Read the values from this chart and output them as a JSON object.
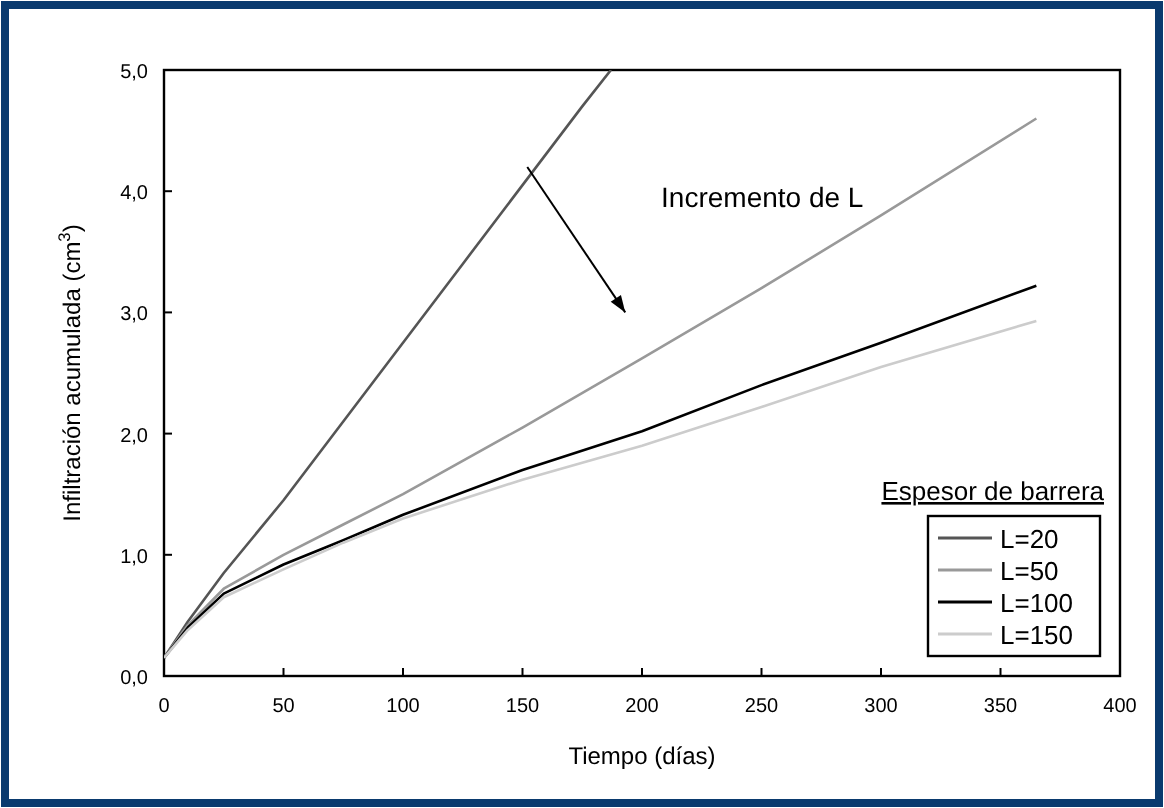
{
  "chart_data": {
    "type": "line",
    "xlabel": "Tiempo (días)",
    "ylabel": "Infiltración acumulada (cm$^{3}$)",
    "legend_title": "Espesor de barrera",
    "legend": "bottom right",
    "grid": false,
    "marker": "none",
    "line_style": "solid",
    "annotations": [
      "Incremento de L"
    ],
    "xlim": [
      0,
      400
    ],
    "xticks": [
      0,
      50,
      100,
      150,
      200,
      250,
      300,
      350,
      400
    ],
    "ylim": [
      0,
      5
    ],
    "yticks": [
      {
        "value": 0,
        "label": "0,0"
      },
      {
        "value": 1,
        "label": "1,0"
      },
      {
        "value": 2,
        "label": "2,0"
      },
      {
        "value": 3,
        "label": "3,0"
      },
      {
        "value": 4,
        "label": "4,0"
      },
      {
        "value": 5,
        "label": "5,0"
      }
    ],
    "series": [
      {
        "name": "L=20",
        "color": "#555555",
        "x": [
          0,
          10,
          25,
          50,
          75,
          100,
          125,
          150,
          175,
          187
        ],
        "values": [
          0.15,
          0.45,
          0.85,
          1.45,
          2.1,
          2.75,
          3.4,
          4.05,
          4.7,
          5.0
        ]
      },
      {
        "name": "L=50",
        "color": "#999999",
        "x": [
          0,
          10,
          25,
          50,
          75,
          100,
          150,
          200,
          250,
          300,
          365
        ],
        "values": [
          0.15,
          0.42,
          0.72,
          1.0,
          1.25,
          1.5,
          2.05,
          2.62,
          3.2,
          3.8,
          4.6
        ]
      },
      {
        "name": "L=100",
        "color": "#000000",
        "x": [
          0,
          10,
          25,
          50,
          75,
          100,
          150,
          200,
          250,
          300,
          365
        ],
        "values": [
          0.15,
          0.4,
          0.68,
          0.92,
          1.12,
          1.33,
          1.7,
          2.02,
          2.4,
          2.75,
          3.22
        ]
      },
      {
        "name": "L=150",
        "color": "#cccccc",
        "x": [
          0,
          10,
          25,
          50,
          75,
          100,
          150,
          200,
          250,
          300,
          365
        ],
        "values": [
          0.15,
          0.38,
          0.65,
          0.88,
          1.1,
          1.3,
          1.62,
          1.9,
          2.22,
          2.55,
          2.93
        ]
      }
    ]
  }
}
